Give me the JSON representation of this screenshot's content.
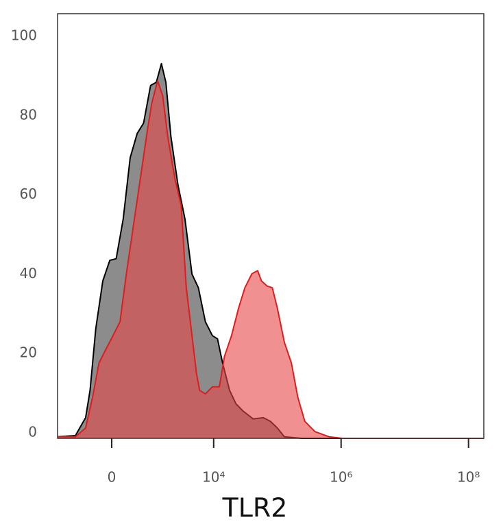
{
  "chart_data": {
    "type": "area",
    "x_label": "TLR2",
    "xlim": [
      1.55,
      8.24
    ],
    "ylim": [
      -1.4,
      105.7
    ],
    "xticks": [
      {
        "value": 2.4,
        "label": "0"
      },
      {
        "value": 4,
        "label": "10⁴"
      },
      {
        "value": 6,
        "label": "10⁶"
      },
      {
        "value": 8,
        "label": "10⁸"
      }
    ],
    "yticks": [
      0,
      20,
      40,
      60,
      80,
      100
    ],
    "grid": false,
    "series": [
      {
        "color": "#8c8c8c",
        "stroke": "#000000",
        "x": [
          1.55,
          1.83,
          1.99,
          2.06,
          2.15,
          2.26,
          2.37,
          2.47,
          2.58,
          2.69,
          2.8,
          2.9,
          3.01,
          3.1,
          3.18,
          3.25,
          3.33,
          3.44,
          3.55,
          3.66,
          3.76,
          3.87,
          3.98,
          4.06,
          4.14,
          4.25,
          4.35,
          4.46,
          4.62,
          4.78,
          4.89,
          5.0,
          5.11,
          5.38,
          8.24
        ],
        "values": [
          -1.0,
          -0.7,
          3.8,
          10.7,
          26.3,
          38.3,
          43.5,
          43.9,
          53.9,
          69.4,
          75.5,
          78.1,
          87.6,
          88.4,
          93.1,
          88.4,
          74.6,
          62.5,
          53.9,
          40.0,
          36.6,
          28.0,
          24.5,
          23.7,
          17.6,
          10.7,
          7.3,
          5.5,
          3.5,
          3.8,
          2.9,
          1.2,
          -1.0,
          -1.4,
          -1.4
        ]
      },
      {
        "color": "rgba(232,70,70,0.6)",
        "stroke": "#e01c1c",
        "x": [
          1.55,
          1.83,
          1.99,
          2.1,
          2.2,
          2.31,
          2.42,
          2.53,
          2.63,
          2.74,
          2.85,
          2.96,
          3.03,
          3.12,
          3.2,
          3.28,
          3.39,
          3.49,
          3.57,
          3.66,
          3.73,
          3.78,
          3.87,
          3.98,
          4.09,
          4.17,
          4.28,
          4.39,
          4.49,
          4.6,
          4.69,
          4.75,
          4.84,
          4.92,
          5.0,
          5.11,
          5.22,
          5.32,
          5.43,
          5.59,
          5.81,
          6.02,
          8.24
        ],
        "values": [
          -1.0,
          -1.0,
          1.2,
          9.0,
          17.6,
          21.1,
          24.5,
          28.0,
          40.1,
          52.2,
          64.2,
          76.3,
          83.2,
          88.8,
          85.0,
          74.6,
          64.2,
          57.3,
          36.6,
          24.5,
          15.0,
          10.7,
          9.8,
          11.6,
          11.6,
          19.3,
          24.5,
          31.4,
          36.6,
          40.1,
          40.9,
          38.3,
          37.0,
          36.6,
          31.4,
          22.8,
          17.6,
          9.0,
          2.9,
          0.3,
          -1.0,
          -1.4,
          -1.4
        ]
      }
    ]
  }
}
